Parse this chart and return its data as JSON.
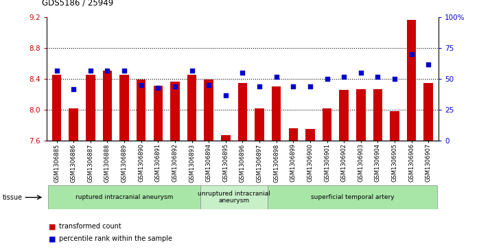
{
  "title": "GDS5186 / 25949",
  "samples": [
    "GSM1306885",
    "GSM1306886",
    "GSM1306887",
    "GSM1306888",
    "GSM1306889",
    "GSM1306890",
    "GSM1306891",
    "GSM1306892",
    "GSM1306893",
    "GSM1306894",
    "GSM1306895",
    "GSM1306896",
    "GSM1306897",
    "GSM1306898",
    "GSM1306899",
    "GSM1306900",
    "GSM1306901",
    "GSM1306902",
    "GSM1306903",
    "GSM1306904",
    "GSM1306905",
    "GSM1306906",
    "GSM1306907"
  ],
  "bar_values": [
    8.46,
    8.02,
    8.46,
    8.51,
    8.46,
    8.39,
    8.31,
    8.37,
    8.46,
    8.39,
    7.67,
    8.35,
    8.02,
    8.3,
    7.76,
    7.75,
    8.02,
    8.26,
    8.27,
    8.27,
    7.98,
    9.17,
    8.35
  ],
  "percentile_values": [
    57,
    42,
    57,
    57,
    57,
    45,
    43,
    44,
    57,
    45,
    37,
    55,
    44,
    52,
    44,
    44,
    50,
    52,
    55,
    52,
    50,
    70,
    62
  ],
  "y_min": 7.6,
  "y_max": 9.2,
  "y_ticks": [
    7.6,
    8.0,
    8.4,
    8.8,
    9.2
  ],
  "right_y_ticks": [
    0,
    25,
    50,
    75,
    100
  ],
  "bar_color": "#cc0000",
  "dot_color": "#0000cc",
  "groups": [
    {
      "label": "ruptured intracranial aneurysm",
      "start": 0,
      "end": 9,
      "color": "#a8e6a8"
    },
    {
      "label": "unruptured intracranial\naneurysm",
      "start": 9,
      "end": 13,
      "color": "#c8f0c8"
    },
    {
      "label": "superficial temporal artery",
      "start": 13,
      "end": 23,
      "color": "#a8e6a8"
    }
  ],
  "legend_bar_label": "transformed count",
  "legend_dot_label": "percentile rank within the sample",
  "tissue_label": "tissue"
}
